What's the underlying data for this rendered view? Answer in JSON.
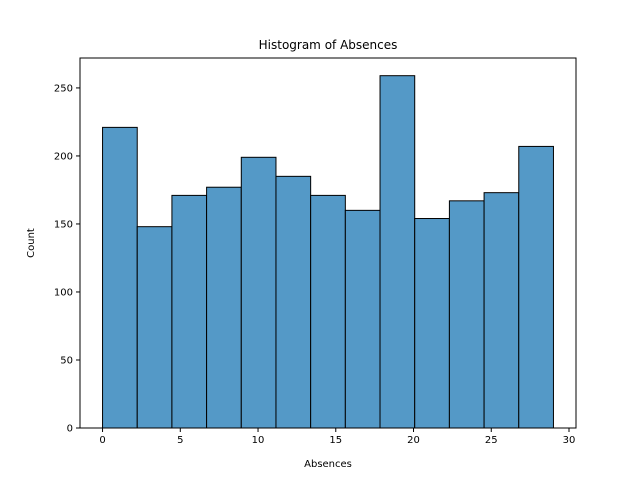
{
  "chart_data": {
    "type": "bar",
    "title": "Histogram of Absences",
    "xlabel": "Absences",
    "ylabel": "Count",
    "bin_edges": [
      0,
      2.2308,
      4.4615,
      6.6923,
      8.9231,
      11.1538,
      13.3846,
      15.6154,
      17.8462,
      20.0769,
      22.3077,
      24.5385,
      26.7692,
      29
    ],
    "values": [
      221,
      148,
      171,
      177,
      199,
      185,
      171,
      160,
      259,
      154,
      167,
      173,
      207
    ],
    "xlim": [
      -1.45,
      30.45
    ],
    "ylim": [
      0,
      272
    ],
    "xticks": [
      0,
      5,
      10,
      15,
      20,
      25,
      30
    ],
    "yticks": [
      0,
      50,
      100,
      150,
      200,
      250
    ],
    "bar_color": "#5499c7",
    "edge_color": "#000000",
    "grid": false
  }
}
